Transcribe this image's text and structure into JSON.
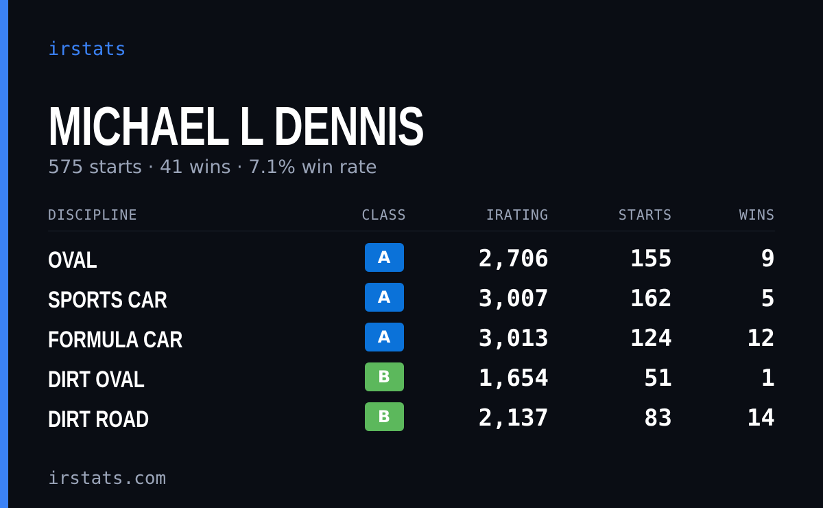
{
  "brand": "irstats",
  "driver": {
    "name": "MICHAEL L DENNIS",
    "summary": "575 starts · 41 wins · 7.1% win rate"
  },
  "table": {
    "headers": [
      "DISCIPLINE",
      "CLASS",
      "IRATING",
      "STARTS",
      "WINS"
    ],
    "rows": [
      [
        "OVAL",
        "A",
        "2,706",
        "155",
        "9"
      ],
      [
        "SPORTS CAR",
        "A",
        "3,007",
        "162",
        "5"
      ],
      [
        "FORMULA CAR",
        "A",
        "3,013",
        "124",
        "12"
      ],
      [
        "DIRT OVAL",
        "B",
        "1,654",
        "51",
        "1"
      ],
      [
        "DIRT ROAD",
        "B",
        "2,137",
        "83",
        "14"
      ]
    ]
  },
  "class_colors": {
    "A": "#0b72d9",
    "B": "#5cb85c"
  },
  "footer": "irstats.com"
}
